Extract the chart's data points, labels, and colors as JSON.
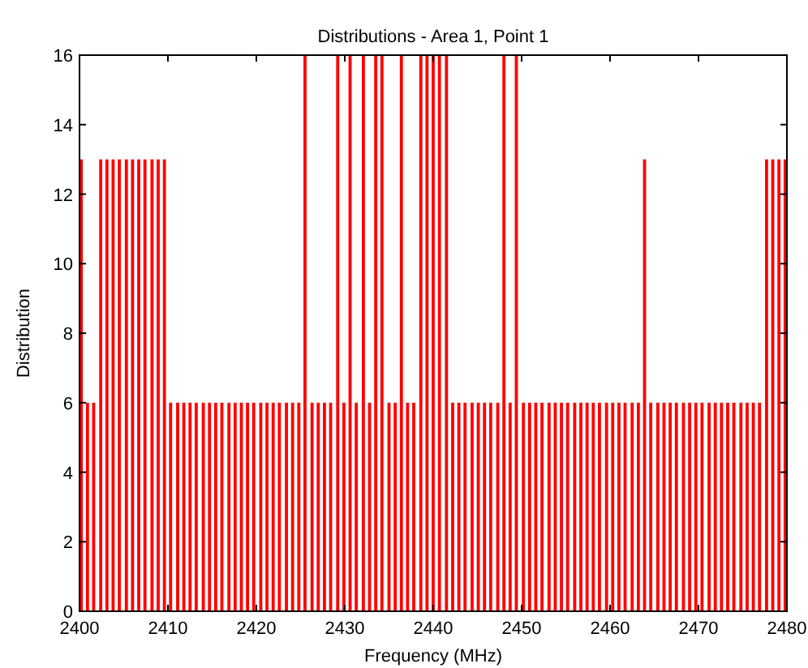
{
  "chart_data": {
    "type": "bar",
    "title": "Distributions  - Area 1, Point 1",
    "xlabel": "Frequency (MHz)",
    "ylabel": "Distribution",
    "x": [
      2400.2,
      2400.9,
      2401.6,
      2402.4,
      2403.1,
      2403.8,
      2404.5,
      2405.3,
      2406.0,
      2406.7,
      2407.4,
      2408.2,
      2408.9,
      2409.6,
      2410.3,
      2411.1,
      2411.8,
      2412.5,
      2413.2,
      2414.0,
      2414.7,
      2415.4,
      2416.1,
      2416.9,
      2417.6,
      2418.3,
      2419.0,
      2419.7,
      2420.5,
      2421.2,
      2421.9,
      2422.6,
      2423.4,
      2424.1,
      2424.8,
      2425.5,
      2426.3,
      2427.0,
      2427.7,
      2428.4,
      2429.2,
      2429.9,
      2430.6,
      2431.3,
      2432.1,
      2432.8,
      2433.5,
      2434.2,
      2435.0,
      2435.7,
      2436.4,
      2437.1,
      2437.8,
      2438.6,
      2439.3,
      2440.0,
      2440.7,
      2441.5,
      2442.2,
      2442.9,
      2443.6,
      2444.4,
      2445.1,
      2445.8,
      2446.5,
      2447.3,
      2448.0,
      2448.7,
      2449.4,
      2450.2,
      2450.9,
      2451.6,
      2452.3,
      2453.1,
      2453.8,
      2454.5,
      2455.2,
      2456.0,
      2456.7,
      2457.4,
      2458.1,
      2458.8,
      2459.6,
      2460.3,
      2461.0,
      2461.7,
      2462.5,
      2463.2,
      2463.9,
      2464.6,
      2465.4,
      2466.1,
      2466.8,
      2467.5,
      2468.3,
      2469.0,
      2469.7,
      2470.4,
      2471.2,
      2471.9,
      2472.6,
      2473.3,
      2474.0,
      2474.8,
      2475.5,
      2476.2,
      2476.9,
      2477.7,
      2478.4,
      2479.1,
      2479.8
    ],
    "values": [
      13,
      6,
      6,
      13,
      13,
      13,
      13,
      13,
      13,
      13,
      13,
      13,
      13,
      13,
      6,
      6,
      6,
      6,
      6,
      6,
      6,
      6,
      6,
      6,
      6,
      6,
      6,
      6,
      6,
      6,
      6,
      6,
      6,
      6,
      6,
      16,
      6,
      6,
      6,
      6,
      16,
      6,
      16,
      6,
      16,
      6,
      16,
      16,
      6,
      6,
      16,
      6,
      6,
      16,
      16,
      16,
      16,
      16,
      6,
      6,
      6,
      6,
      6,
      6,
      6,
      6,
      16,
      6,
      16,
      6,
      6,
      6,
      6,
      6,
      6,
      6,
      6,
      6,
      6,
      6,
      6,
      6,
      6,
      6,
      6,
      6,
      6,
      6,
      13,
      6,
      6,
      6,
      6,
      6,
      6,
      6,
      6,
      6,
      6,
      6,
      6,
      6,
      6,
      6,
      6,
      6,
      6,
      13,
      13,
      13,
      13
    ],
    "color": "#ff0000",
    "xlim": [
      2400,
      2480
    ],
    "xticks": [
      2400,
      2410,
      2420,
      2430,
      2440,
      2450,
      2460,
      2470,
      2480
    ],
    "ylim": [
      0,
      16
    ],
    "yticks": [
      0,
      2,
      4,
      6,
      8,
      10,
      12,
      14,
      16
    ]
  }
}
